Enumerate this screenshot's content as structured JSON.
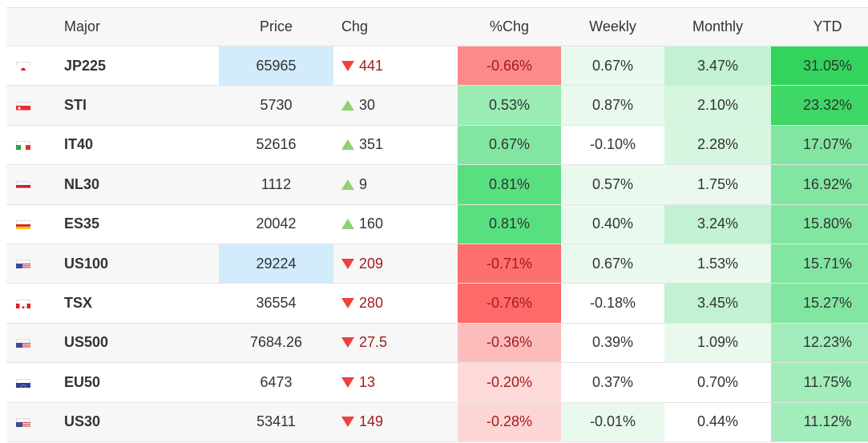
{
  "table": {
    "headers": {
      "flag": "",
      "symbol": "Major",
      "price": "Price",
      "chg": "Chg",
      "pct": "%Chg",
      "weekly": "Weekly",
      "monthly": "Monthly",
      "ytd": "YTD"
    },
    "rows": [
      {
        "flag": "japan-flag-icon",
        "symbol": "JP225",
        "price": "65965",
        "chg": "441",
        "dir": "down",
        "pct": "-0.66%",
        "weekly": "0.67%",
        "monthly": "3.47%",
        "ytd": "31.05%"
      },
      {
        "flag": "singapore-flag-icon",
        "symbol": "STI",
        "price": "5730",
        "chg": "30",
        "dir": "up",
        "pct": "0.53%",
        "weekly": "0.87%",
        "monthly": "2.10%",
        "ytd": "23.32%"
      },
      {
        "flag": "italy-flag-icon",
        "symbol": "IT40",
        "price": "52616",
        "chg": "351",
        "dir": "up",
        "pct": "0.67%",
        "weekly": "-0.10%",
        "monthly": "2.28%",
        "ytd": "17.07%"
      },
      {
        "flag": "netherlands-flag-icon",
        "symbol": "NL30",
        "price": "1112",
        "chg": "9",
        "dir": "up",
        "pct": "0.81%",
        "weekly": "0.57%",
        "monthly": "1.75%",
        "ytd": "16.92%"
      },
      {
        "flag": "spain-flag-icon",
        "symbol": "ES35",
        "price": "20042",
        "chg": "160",
        "dir": "up",
        "pct": "0.81%",
        "weekly": "0.40%",
        "monthly": "3.24%",
        "ytd": "15.80%"
      },
      {
        "flag": "usa-flag-icon",
        "symbol": "US100",
        "price": "29224",
        "chg": "209",
        "dir": "down",
        "pct": "-0.71%",
        "weekly": "0.67%",
        "monthly": "1.53%",
        "ytd": "15.71%"
      },
      {
        "flag": "canada-flag-icon",
        "symbol": "TSX",
        "price": "36554",
        "chg": "280",
        "dir": "down",
        "pct": "-0.76%",
        "weekly": "-0.18%",
        "monthly": "3.45%",
        "ytd": "15.27%"
      },
      {
        "flag": "usa-flag-icon",
        "symbol": "US500",
        "price": "7684.26",
        "chg": "27.5",
        "dir": "down",
        "pct": "-0.36%",
        "weekly": "0.39%",
        "monthly": "1.09%",
        "ytd": "12.23%"
      },
      {
        "flag": "eu-flag-icon",
        "symbol": "EU50",
        "price": "6473",
        "chg": "13",
        "dir": "down",
        "pct": "-0.20%",
        "weekly": "0.37%",
        "monthly": "0.70%",
        "ytd": "11.75%"
      },
      {
        "flag": "usa-flag-icon",
        "symbol": "US30",
        "price": "53411",
        "chg": "149",
        "dir": "down",
        "pct": "-0.28%",
        "weekly": "-0.01%",
        "monthly": "0.44%",
        "ytd": "11.12%"
      }
    ],
    "colors": {
      "up_arrow": "#8fd16f",
      "down_arrow": "#f04040",
      "neg_text": "#a11d1d",
      "price_highlight": "#d2ecfb"
    }
  }
}
